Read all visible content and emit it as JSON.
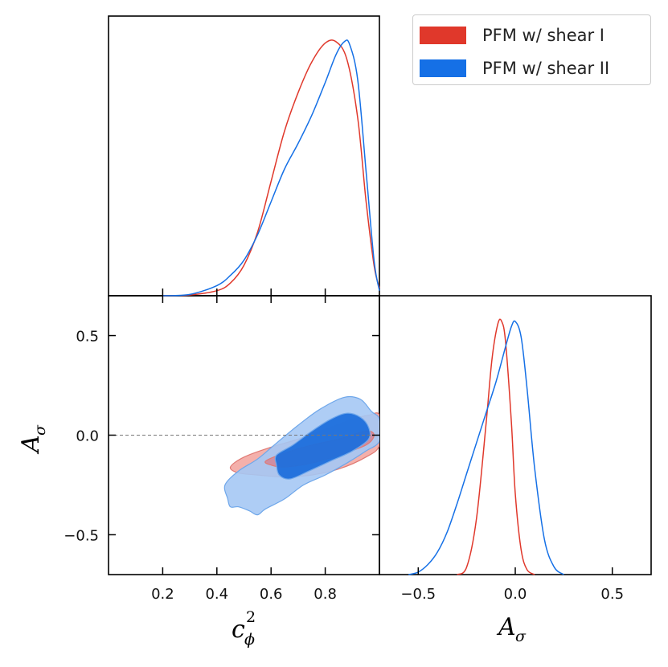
{
  "chart_data": {
    "type": "triangle-plot",
    "parameters": [
      "c_phi^2",
      "A_sigma"
    ],
    "legend": {
      "location": "top-right",
      "entries": [
        {
          "label": "PFM w/ shear I",
          "color": "#e0382b"
        },
        {
          "label": "PFM w/ shear II",
          "color": "#1570e6"
        }
      ]
    },
    "panels": {
      "marginal_c_phi2": {
        "xlim": [
          0.0,
          1.0
        ],
        "series": [
          {
            "name": "PFM w/ shear I",
            "x": [
              0.2,
              0.3,
              0.4,
              0.45,
              0.5,
              0.55,
              0.6,
              0.65,
              0.7,
              0.75,
              0.8,
              0.84,
              0.88,
              0.92,
              0.95,
              0.98,
              1.0
            ],
            "y": [
              0.0,
              0.003,
              0.02,
              0.05,
              0.12,
              0.25,
              0.45,
              0.65,
              0.8,
              0.92,
              0.995,
              1.0,
              0.93,
              0.7,
              0.38,
              0.12,
              0.03
            ]
          },
          {
            "name": "PFM w/ shear II",
            "x": [
              0.2,
              0.3,
              0.4,
              0.45,
              0.5,
              0.55,
              0.6,
              0.65,
              0.7,
              0.75,
              0.8,
              0.84,
              0.87,
              0.89,
              0.92,
              0.95,
              0.98,
              1.0
            ],
            "y": [
              0.0,
              0.005,
              0.04,
              0.08,
              0.14,
              0.24,
              0.37,
              0.5,
              0.6,
              0.71,
              0.84,
              0.95,
              1.0,
              0.99,
              0.85,
              0.5,
              0.14,
              0.02
            ]
          }
        ]
      },
      "joint": {
        "xlim": [
          0.0,
          1.0
        ],
        "ylim": [
          -0.7,
          0.7
        ],
        "reference_line_y": 0.0,
        "xticks": [
          0.2,
          0.4,
          0.6,
          0.8
        ],
        "xtick_labels": [
          "0.2",
          "0.4",
          "0.6",
          "0.8"
        ],
        "yticks": [
          0.5,
          0.0,
          -0.5
        ],
        "ytick_labels": [
          "0.5",
          "0.0",
          "−0.5"
        ],
        "xlabel": "c_ϕ^2",
        "ylabel": "A_σ",
        "contours": [
          {
            "name": "PFM w/ shear I",
            "level": "95%",
            "color": "#f2a29c",
            "points": [
              [
                0.45,
                -0.16
              ],
              [
                0.5,
                -0.11
              ],
              [
                0.6,
                -0.06
              ],
              [
                0.7,
                -0.02
              ],
              [
                0.8,
                0.03
              ],
              [
                0.9,
                0.08
              ],
              [
                0.96,
                0.1
              ],
              [
                1.0,
                0.1
              ],
              [
                1.0,
                -0.05
              ],
              [
                0.95,
                -0.11
              ],
              [
                0.85,
                -0.17
              ],
              [
                0.75,
                -0.2
              ],
              [
                0.65,
                -0.21
              ],
              [
                0.55,
                -0.2
              ],
              [
                0.48,
                -0.19
              ]
            ]
          },
          {
            "name": "PFM w/ shear I",
            "level": "68%",
            "color": "#d97b88",
            "points": [
              [
                0.58,
                -0.13
              ],
              [
                0.65,
                -0.09
              ],
              [
                0.75,
                -0.05
              ],
              [
                0.85,
                -0.02
              ],
              [
                0.95,
                0.02
              ],
              [
                0.98,
                0.0
              ],
              [
                0.95,
                -0.05
              ],
              [
                0.85,
                -0.1
              ],
              [
                0.75,
                -0.14
              ],
              [
                0.65,
                -0.16
              ],
              [
                0.6,
                -0.15
              ]
            ]
          },
          {
            "name": "PFM w/ shear II",
            "level": "95%",
            "color": "#a5c8f4",
            "points": [
              [
                0.43,
                -0.25
              ],
              [
                0.48,
                -0.18
              ],
              [
                0.55,
                -0.12
              ],
              [
                0.62,
                -0.04
              ],
              [
                0.7,
                0.05
              ],
              [
                0.78,
                0.13
              ],
              [
                0.87,
                0.19
              ],
              [
                0.93,
                0.18
              ],
              [
                0.97,
                0.12
              ],
              [
                1.0,
                0.08
              ],
              [
                1.0,
                -0.03
              ],
              [
                0.95,
                -0.08
              ],
              [
                0.88,
                -0.14
              ],
              [
                0.8,
                -0.2
              ],
              [
                0.72,
                -0.25
              ],
              [
                0.65,
                -0.32
              ],
              [
                0.58,
                -0.37
              ],
              [
                0.55,
                -0.4
              ],
              [
                0.52,
                -0.38
              ],
              [
                0.48,
                -0.36
              ],
              [
                0.45,
                -0.36
              ],
              [
                0.44,
                -0.32
              ]
            ]
          },
          {
            "name": "PFM w/ shear II",
            "level": "68%",
            "color": "#1e6fdc",
            "points": [
              [
                0.62,
                -0.1
              ],
              [
                0.68,
                -0.05
              ],
              [
                0.75,
                0.02
              ],
              [
                0.82,
                0.08
              ],
              [
                0.88,
                0.11
              ],
              [
                0.93,
                0.09
              ],
              [
                0.96,
                0.04
              ],
              [
                0.96,
                -0.02
              ],
              [
                0.9,
                -0.08
              ],
              [
                0.82,
                -0.13
              ],
              [
                0.74,
                -0.18
              ],
              [
                0.67,
                -0.22
              ],
              [
                0.63,
                -0.2
              ],
              [
                0.62,
                -0.15
              ]
            ]
          }
        ]
      },
      "marginal_A_sigma": {
        "xlim": [
          -0.7,
          0.7
        ],
        "xticks": [
          -0.5,
          0.0,
          0.5
        ],
        "xtick_labels": [
          "−0.5",
          "0.0",
          "0.5"
        ],
        "xlabel": "A_σ",
        "series": [
          {
            "name": "PFM w/ shear I",
            "x": [
              -0.3,
              -0.25,
              -0.2,
              -0.15,
              -0.12,
              -0.09,
              -0.07,
              -0.05,
              -0.02,
              0.0,
              0.03,
              0.06,
              0.1
            ],
            "y": [
              0.0,
              0.03,
              0.22,
              0.6,
              0.85,
              0.99,
              1.0,
              0.92,
              0.6,
              0.32,
              0.1,
              0.02,
              0.0
            ]
          },
          {
            "name": "PFM w/ shear II",
            "x": [
              -0.55,
              -0.5,
              -0.45,
              -0.4,
              -0.35,
              -0.3,
              -0.25,
              -0.2,
              -0.15,
              -0.1,
              -0.05,
              -0.02,
              0.0,
              0.03,
              0.06,
              0.1,
              0.15,
              0.2,
              0.25
            ],
            "y": [
              0.0,
              0.01,
              0.04,
              0.09,
              0.17,
              0.28,
              0.4,
              0.52,
              0.64,
              0.76,
              0.9,
              0.98,
              1.0,
              0.94,
              0.74,
              0.42,
              0.14,
              0.03,
              0.0
            ]
          }
        ]
      }
    }
  }
}
